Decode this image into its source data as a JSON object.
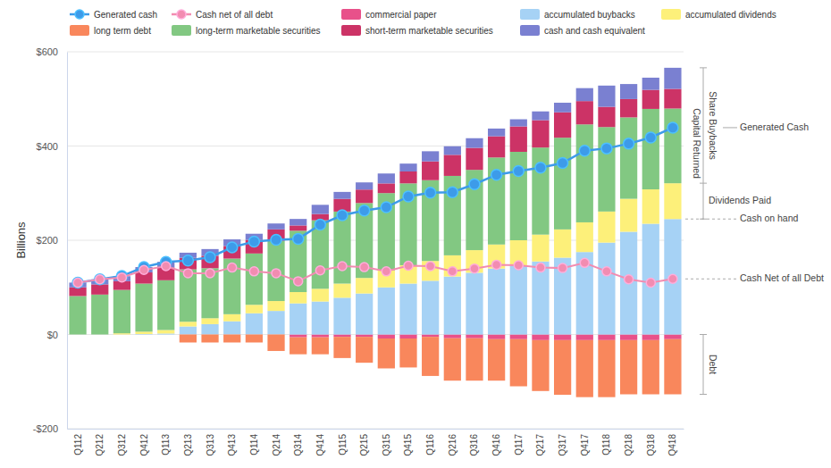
{
  "chart_data": {
    "type": "bar",
    "stacked": true,
    "grid": true,
    "legend": "top",
    "y_label": "Billions",
    "ylim": [
      -200,
      600
    ],
    "yticks": [
      {
        "value": -200,
        "label": "-$200"
      },
      {
        "value": 0,
        "label": "$0"
      },
      {
        "value": 200,
        "label": "$200"
      },
      {
        "value": 400,
        "label": "$400"
      },
      {
        "value": 600,
        "label": "$600"
      }
    ],
    "categories": [
      "Q112",
      "Q212",
      "Q312",
      "Q412",
      "Q113",
      "Q213",
      "Q313",
      "Q413",
      "Q114",
      "Q214",
      "Q314",
      "Q414",
      "Q115",
      "Q215",
      "Q315",
      "Q415",
      "Q116",
      "Q216",
      "Q316",
      "Q416",
      "Q117",
      "Q217",
      "Q317",
      "Q417",
      "Q118",
      "Q218",
      "Q318",
      "Q418"
    ],
    "series": [
      {
        "name": "Generated cash",
        "type": "line",
        "marker": "circle",
        "color": "#3d9be9",
        "values": [
          110,
          117,
          124,
          143,
          154,
          157,
          164,
          185,
          197,
          201,
          203,
          233,
          253,
          263,
          270,
          293,
          301,
          302,
          319,
          339,
          347,
          354,
          364,
          390,
          395,
          405,
          418,
          439
        ]
      },
      {
        "name": "Cash net of all debt",
        "type": "line",
        "marker": "circle",
        "color": "#f28cb1",
        "values": [
          110,
          117,
          121,
          137,
          145,
          130,
          130,
          142,
          134,
          130,
          113,
          136,
          145,
          143,
          134,
          146,
          145,
          134,
          140,
          148,
          147,
          142,
          141,
          152,
          134,
          117,
          110,
          118
        ]
      },
      {
        "name": "commercial paper",
        "type": "bar",
        "color": "#e8518a",
        "values": [
          0,
          0,
          0,
          0,
          0,
          0,
          0,
          0,
          0,
          0,
          -6,
          -6,
          -5,
          -5,
          -8.5,
          -8.5,
          -5,
          -8,
          -8,
          -10,
          -10,
          -12,
          -12,
          -12,
          -12,
          -12,
          -12,
          -10
        ]
      },
      {
        "name": "accumulated buybacks",
        "type": "bar",
        "color": "#a6d2f5",
        "values": [
          0,
          0,
          0,
          1,
          2,
          17,
          22,
          28,
          45,
          50,
          66,
          70,
          78,
          87,
          100,
          108,
          114,
          123,
          131,
          140,
          146,
          155,
          163,
          175,
          195,
          218,
          235,
          245
        ]
      },
      {
        "name": "accumulated dividends",
        "type": "bar",
        "color": "#fdf07a",
        "values": [
          0,
          0,
          2.5,
          5,
          7.5,
          10,
          12.5,
          15,
          18,
          21,
          24,
          27,
          30,
          33,
          36,
          39,
          42,
          45,
          48,
          51,
          54,
          57,
          60,
          63,
          66,
          70,
          73,
          76
        ]
      },
      {
        "name": "long term debt",
        "type": "bar",
        "color": "#f9875c",
        "values": [
          0,
          0,
          0,
          0,
          0,
          -17,
          -17,
          -17,
          -17,
          -35,
          -36,
          -36,
          -45,
          -55,
          -63.5,
          -61.5,
          -83,
          -90,
          -90,
          -88,
          -100,
          -108,
          -116,
          -121,
          -121,
          -115,
          -115,
          -117
        ]
      },
      {
        "name": "long-term marketable securities",
        "type": "bar",
        "color": "#82c882",
        "values": [
          81.6,
          84.7,
          92.1,
          102.0,
          105.6,
          111.2,
          106.2,
          118.1,
          108.9,
          127.9,
          130.2,
          145.4,
          152.9,
          159.0,
          164.1,
          173.7,
          171.5,
          168.6,
          170.4,
          184.7,
          187.7,
          184.8,
          194.7,
          207.9,
          179.3,
          172.8,
          170.8,
          158.6
        ]
      },
      {
        "name": "short-term marketable securities",
        "type": "bar",
        "color": "#cc3366",
        "values": [
          18.4,
          21.6,
          18.4,
          23.7,
          27.1,
          24.4,
          26.3,
          26.7,
          28.9,
          24.2,
          11.2,
          13.3,
          26.9,
          28.6,
          20.5,
          25.3,
          39.9,
          44.7,
          46.7,
          45.0,
          53.9,
          58.1,
          53.9,
          49.5,
          42.9,
          38.9,
          40.4,
          41.7
        ]
      },
      {
        "name": "cash and cash equivalent",
        "type": "bar",
        "color": "#7a80d1",
        "values": [
          10.1,
          10.7,
          10.7,
          11.4,
          12.1,
          11.0,
          14.3,
          14.1,
          13.0,
          12.5,
          13.8,
          19.5,
          14.8,
          15.2,
          21.1,
          16.7,
          21.5,
          18.2,
          20.5,
          16.4,
          15.2,
          18.6,
          20.3,
          27.5,
          45.1,
          31.9,
          25.9,
          44.8
        ]
      }
    ],
    "annotations": [
      "Share Buybacks",
      "Capital Returned",
      "Dividends Paid",
      "Generated Cash",
      "Cash on hand",
      "Cash Net of all Debt",
      "Debt"
    ]
  }
}
